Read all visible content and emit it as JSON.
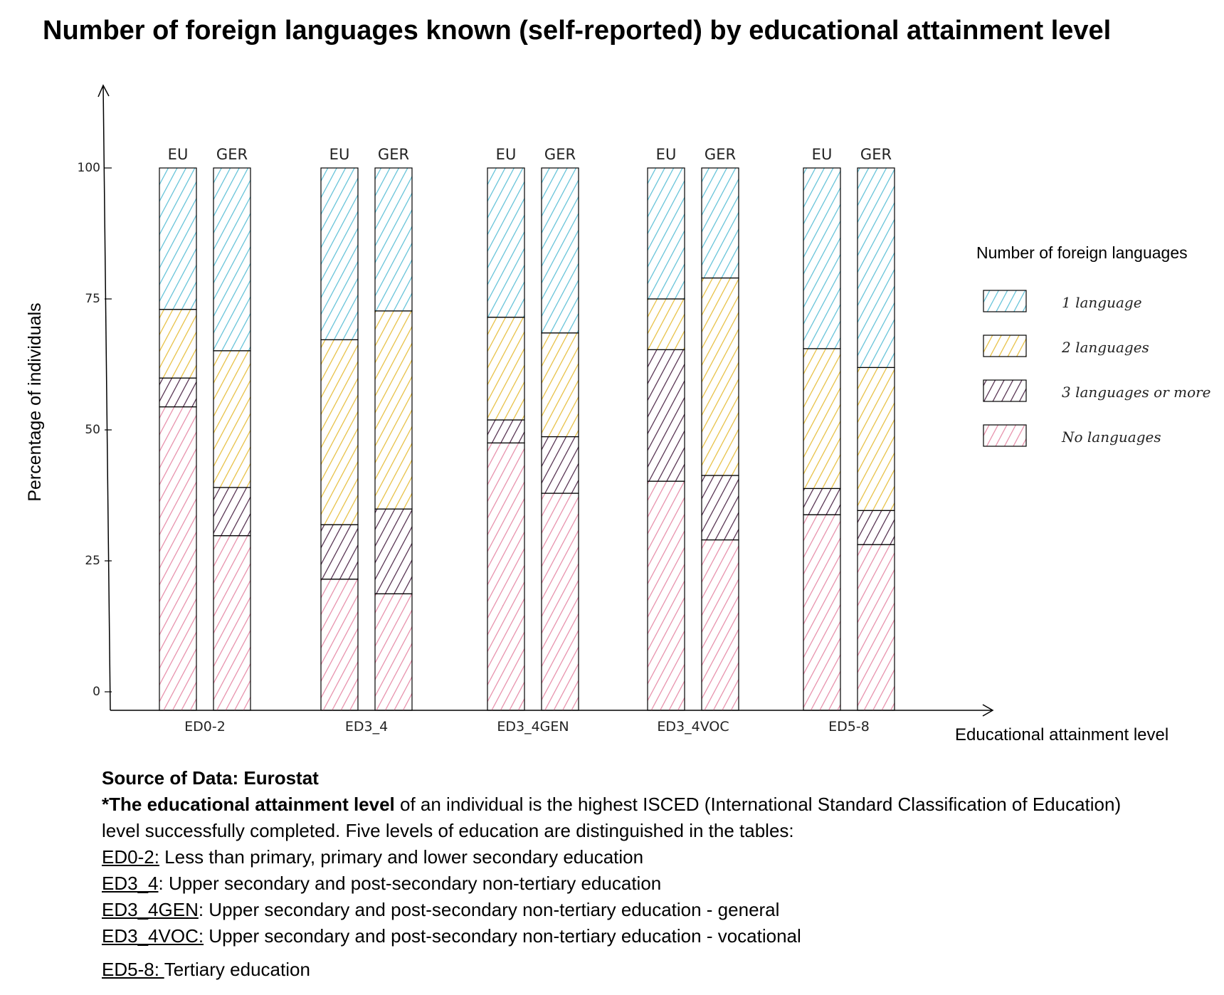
{
  "chart_data": {
    "type": "bar",
    "stacked": true,
    "title": "Number of foreign languages known (self-reported) by educational attainment level",
    "xlabel": "Educational attainment level",
    "ylabel": "Percentage of individuals",
    "ylim": [
      0,
      100
    ],
    "yticks": [
      "0",
      "25",
      "50",
      "75",
      "100"
    ],
    "categories": [
      "ED0-2",
      "ED3_4",
      "ED3_4GEN",
      "ED3_4VOC",
      "ED5-8"
    ],
    "bar_labels": [
      "EU",
      "GER"
    ],
    "legend": {
      "title": "Number of foreign languages",
      "position": "right"
    },
    "grid": false,
    "series": [
      {
        "name": "No languages",
        "color": "#e68aa6",
        "values": [
          [
            54.4,
            29.8
          ],
          [
            21.5,
            18.7
          ],
          [
            47.5,
            37.9
          ],
          [
            40.2,
            29.0
          ],
          [
            33.8,
            28.1
          ]
        ]
      },
      {
        "name": "3 languages or more",
        "color": "#4d2647",
        "values": [
          [
            5.5,
            9.2
          ],
          [
            10.4,
            16.2
          ],
          [
            4.4,
            10.8
          ],
          [
            25.1,
            12.3
          ],
          [
            5.0,
            6.5
          ]
        ]
      },
      {
        "name": "2 languages",
        "color": "#e6bd3a",
        "values": [
          [
            13.1,
            26.1
          ],
          [
            35.3,
            37.8
          ],
          [
            19.6,
            19.8
          ],
          [
            9.7,
            37.7
          ],
          [
            26.7,
            27.3
          ]
        ]
      },
      {
        "name": "1 language",
        "color": "#5cbfd6",
        "values": [
          [
            27.0,
            34.9
          ],
          [
            32.8,
            27.3
          ],
          [
            28.5,
            31.5
          ],
          [
            25.0,
            21.0
          ],
          [
            34.5,
            38.1
          ]
        ]
      }
    ]
  },
  "notes": {
    "source": "Source of Data: Eurostat",
    "definition_bold": "*The educational attainment level",
    "definition_rest": " of an individual is the highest ISCED (International Standard Classification of Education) level successfully completed. Five levels of education are distinguished in the tables:",
    "levels": [
      {
        "code": "ED0-2:",
        "desc": " Less than primary, primary and lower secondary education"
      },
      {
        "code": "ED3_4",
        "desc": ": Upper secondary and post-secondary non-tertiary education"
      },
      {
        "code": "ED3_4GEN",
        "desc": ": Upper secondary and post-secondary non-tertiary education - general"
      },
      {
        "code": "ED3_4VOC:",
        "desc": " Upper secondary and post-secondary non-tertiary education - vocational"
      },
      {
        "code": "ED5-8: ",
        "desc": "Tertiary education"
      }
    ]
  }
}
